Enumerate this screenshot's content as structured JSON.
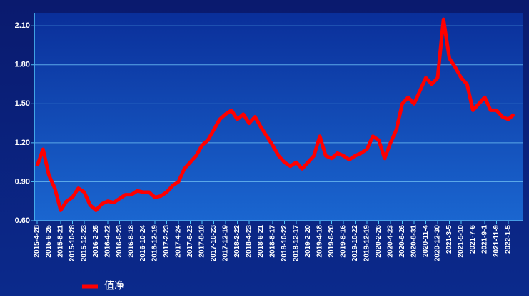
{
  "chart_data": {
    "type": "line",
    "categories": [
      "2015-4-28",
      null,
      "2015-6-25",
      null,
      "2015-8-21",
      null,
      "2015-10-28",
      null,
      "2015-12-23",
      null,
      "2016-2-25",
      null,
      "2016-4-22",
      null,
      "2016-6-23",
      null,
      "2016-8-18",
      null,
      "2016-10-24",
      null,
      "2016-12-19",
      null,
      "2017-2-23",
      null,
      "2017-4-24",
      null,
      "2017-6-23",
      null,
      "2017-8-18",
      null,
      "2017-10-23",
      null,
      "2017-12-19",
      null,
      "2018-2-22",
      null,
      "2018-4-23",
      null,
      "2018-6-21",
      null,
      "2018-8-17",
      null,
      "2018-10-22",
      null,
      "2018-12-17",
      null,
      "2019-2-20",
      null,
      "2019-4-18",
      null,
      "2019-6-20",
      null,
      "2019-8-16",
      null,
      "2019-10-22",
      null,
      "2019-12-19",
      null,
      "2020-2-26",
      null,
      "2020-4-23",
      null,
      "2020-6-26",
      null,
      "2020-8-31",
      null,
      "2020-11-4",
      null,
      "2020-12-30",
      null,
      "2021-3-5",
      null,
      "2021-5-10",
      null,
      "2021-7-6",
      null,
      "2021-9-1",
      null,
      "2021-11-9",
      null,
      "2022-1-5",
      null
    ],
    "series": [
      {
        "name": "值净",
        "color": "#ff0000",
        "values": [
          1.02,
          1.15,
          0.95,
          0.85,
          0.68,
          0.75,
          0.78,
          0.85,
          0.82,
          0.72,
          0.68,
          0.73,
          0.75,
          0.74,
          0.77,
          0.8,
          0.8,
          0.83,
          0.82,
          0.82,
          0.78,
          0.79,
          0.82,
          0.87,
          0.9,
          1.0,
          1.05,
          1.1,
          1.18,
          1.22,
          1.3,
          1.38,
          1.42,
          1.45,
          1.38,
          1.42,
          1.35,
          1.4,
          1.32,
          1.25,
          1.18,
          1.1,
          1.05,
          1.02,
          1.05,
          1.0,
          1.05,
          1.1,
          1.25,
          1.1,
          1.08,
          1.12,
          1.1,
          1.07,
          1.1,
          1.12,
          1.15,
          1.25,
          1.22,
          1.08,
          1.2,
          1.3,
          1.5,
          1.55,
          1.5,
          1.6,
          1.7,
          1.65,
          1.7,
          2.15,
          1.85,
          1.78,
          1.7,
          1.65,
          1.45,
          1.5,
          1.55,
          1.45,
          1.45,
          1.4,
          1.38,
          1.42
        ]
      }
    ],
    "ylim": [
      0.6,
      2.2
    ],
    "yticks": [
      {
        "value": 0.6,
        "label": "0.60"
      },
      {
        "value": 0.9,
        "label": "0.90"
      },
      {
        "value": 1.2,
        "label": "1.20"
      },
      {
        "value": 1.5,
        "label": "1.50"
      },
      {
        "value": 1.8,
        "label": "1.80"
      },
      {
        "value": 2.1,
        "label": "2.10"
      }
    ],
    "grid": true,
    "legend": "bottom-left"
  }
}
